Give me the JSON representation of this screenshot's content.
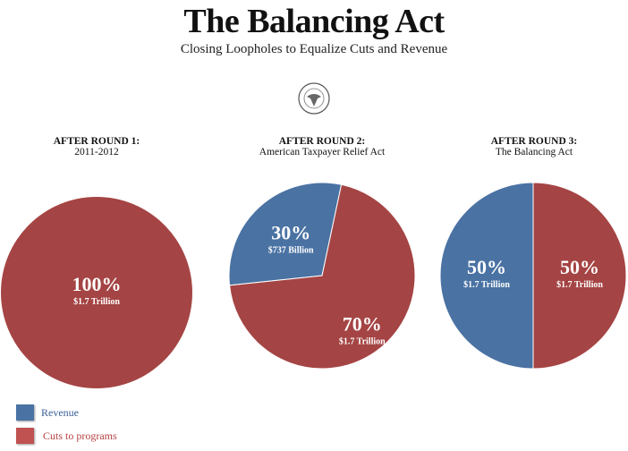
{
  "title": "The Balancing Act",
  "subtitle": "Closing Loopholes to Equalize Cuts and Revenue",
  "seal_text": "U.S. HOUSE OF REPRESENTATIVES",
  "colors": {
    "revenue": "#4a72a3",
    "cuts": "#a54444"
  },
  "chart_data": [
    {
      "type": "pie",
      "heading": "AFTER ROUND 1:",
      "subheading": "2011-2012",
      "slices": [
        {
          "name": "Cuts to programs",
          "value": 100,
          "pct_label": "100%",
          "amount_label": "$1.7 Trillion"
        }
      ]
    },
    {
      "type": "pie",
      "heading": "AFTER ROUND 2:",
      "subheading": "American Taxpayer Relief Act",
      "slices": [
        {
          "name": "Revenue",
          "value": 30,
          "pct_label": "30%",
          "amount_label": "$737 Billion"
        },
        {
          "name": "Cuts to programs",
          "value": 70,
          "pct_label": "70%",
          "amount_label": "$1.7 Trillion"
        }
      ]
    },
    {
      "type": "pie",
      "heading": "AFTER ROUND 3:",
      "subheading": "The Balancing Act",
      "slices": [
        {
          "name": "Revenue",
          "value": 50,
          "pct_label": "50%",
          "amount_label": "$1.7 Trillion"
        },
        {
          "name": "Cuts to programs",
          "value": 50,
          "pct_label": "50%",
          "amount_label": "$1.7 Trillion"
        }
      ]
    }
  ],
  "legend": [
    {
      "label": "Revenue",
      "color": "#4a72a3"
    },
    {
      "label": "Cuts to programs",
      "color": "#a54444"
    }
  ]
}
